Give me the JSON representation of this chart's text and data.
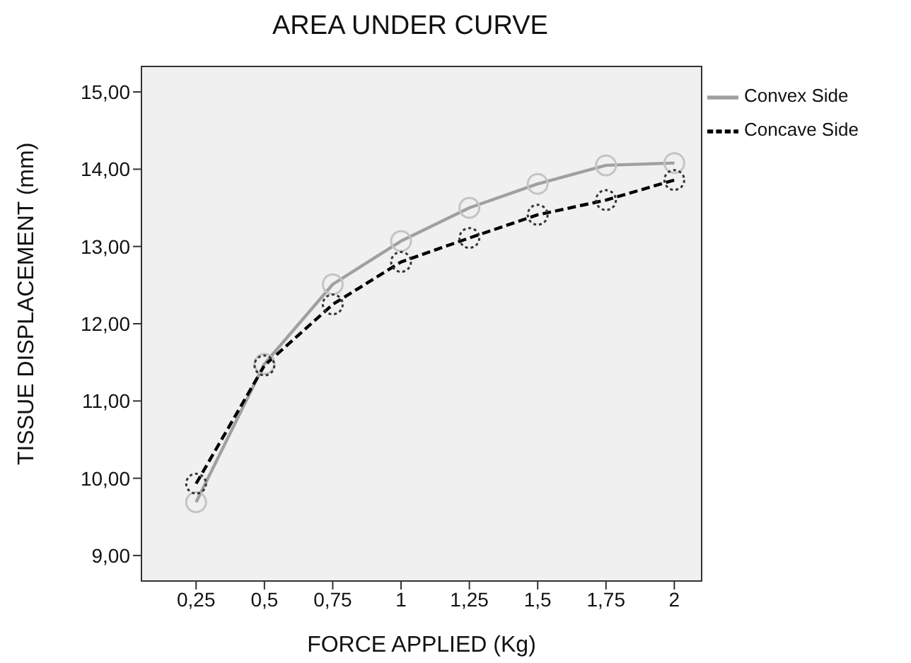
{
  "chart_data": {
    "type": "line",
    "title": "AREA UNDER CURVE",
    "xlabel": "FORCE APPLIED (Kg)",
    "ylabel": "TISSUE DISPLACEMENT (mm)",
    "categories": [
      "0,25",
      "0,5",
      "0,75",
      "1",
      "1,25",
      "1,5",
      "1,75",
      "2"
    ],
    "series": [
      {
        "name": "Convex Side",
        "color": "#a0a0a0",
        "line_style": "solid",
        "values": [
          9.69,
          11.48,
          12.51,
          13.07,
          13.5,
          13.81,
          14.05,
          14.08
        ]
      },
      {
        "name": "Concave Side",
        "color": "#000000",
        "line_style": "dashed",
        "values": [
          9.93,
          11.46,
          12.25,
          12.8,
          13.11,
          13.41,
          13.6,
          13.86
        ]
      }
    ],
    "ylim": [
      8.67,
      15.33
    ],
    "yticks": [
      {
        "value": 9,
        "label": "9,00"
      },
      {
        "value": 10,
        "label": "10,00"
      },
      {
        "value": 11,
        "label": "11,00"
      },
      {
        "value": 12,
        "label": "12,00"
      },
      {
        "value": 13,
        "label": "13,00"
      },
      {
        "value": 14,
        "label": "14,00"
      },
      {
        "value": 15,
        "label": "15,00"
      }
    ],
    "legend": "right",
    "marker": "circle"
  }
}
